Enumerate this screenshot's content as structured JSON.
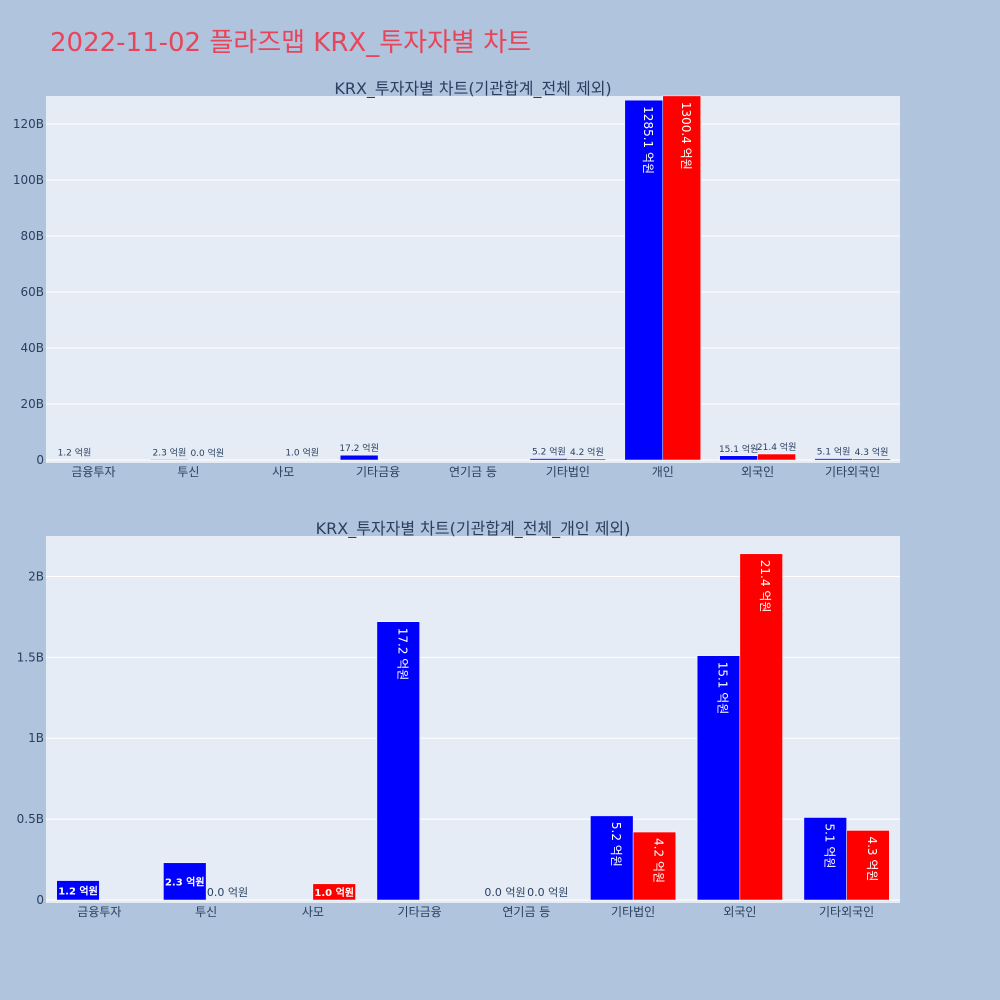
{
  "page_title": "2022-11-02 플라즈맵 KRX_투자자별 차트",
  "colors": {
    "buy": "#0000ff",
    "sell": "#ff0000",
    "plot_bg": "#e5ecf6",
    "paper_bg": "#b0c4de",
    "title": "#e8455a",
    "text": "#2a3f5f"
  },
  "chart_data": [
    {
      "type": "bar",
      "title": "KRX_투자자별 차트(기관합계_전체 제외)",
      "categories": [
        "금융투자",
        "투신",
        "사모",
        "기타금융",
        "연기금 등",
        "기타법인",
        "개인",
        "외국인",
        "기타외국인"
      ],
      "ylim": [
        0,
        130000000000
      ],
      "yticks": [
        0,
        20000000000,
        40000000000,
        60000000000,
        80000000000,
        100000000000,
        120000000000
      ],
      "ytick_labels": [
        "0",
        "20B",
        "40B",
        "60B",
        "80B",
        "100B",
        "120B"
      ],
      "grid": true,
      "series": [
        {
          "color": "#0000ff",
          "values": [
            120000000,
            230000000,
            null,
            1720000000,
            null,
            520000000,
            128510000000,
            1510000000,
            510000000
          ],
          "labels": [
            "1.2 억원",
            "2.3 억원",
            "",
            "17.2 억원",
            "",
            "5.2 억원",
            "1285.1 억원",
            "15.1 억원",
            "5.1 억원"
          ]
        },
        {
          "color": "#ff0000",
          "values": [
            null,
            0,
            100000000,
            null,
            null,
            420000000,
            130040000000,
            2140000000,
            430000000
          ],
          "labels": [
            "",
            "0.0 억원",
            "1.0 억원",
            "",
            "",
            "4.2 억원",
            "1300.4 억원",
            "21.4 억원",
            "4.3 억원"
          ]
        }
      ]
    },
    {
      "type": "bar",
      "title": "KRX_투자자별 차트(기관합계_전체_개인 제외)",
      "categories": [
        "금융투자",
        "투신",
        "사모",
        "기타금융",
        "연기금 등",
        "기타법인",
        "외국인",
        "기타외국인"
      ],
      "ylim": [
        0,
        2250000000
      ],
      "yticks": [
        0,
        500000000,
        1000000000,
        1500000000,
        2000000000
      ],
      "ytick_labels": [
        "0",
        "0.5B",
        "1B",
        "1.5B",
        "2B"
      ],
      "grid": true,
      "series": [
        {
          "color": "#0000ff",
          "values": [
            120000000,
            230000000,
            null,
            1720000000,
            0,
            520000000,
            1510000000,
            510000000
          ],
          "labels": [
            "1.2 억원",
            "2.3 억원",
            "",
            "17.2 억원",
            "0.0 억원",
            "5.2 억원",
            "15.1 억원",
            "5.1 억원"
          ]
        },
        {
          "color": "#ff0000",
          "values": [
            null,
            0,
            100000000,
            null,
            0,
            420000000,
            2140000000,
            430000000
          ],
          "labels": [
            "",
            "0.0 억원",
            "1.0 억원",
            "",
            "0.0 억원",
            "4.2 억원",
            "21.4 억원",
            "4.3 억원"
          ]
        }
      ]
    }
  ]
}
